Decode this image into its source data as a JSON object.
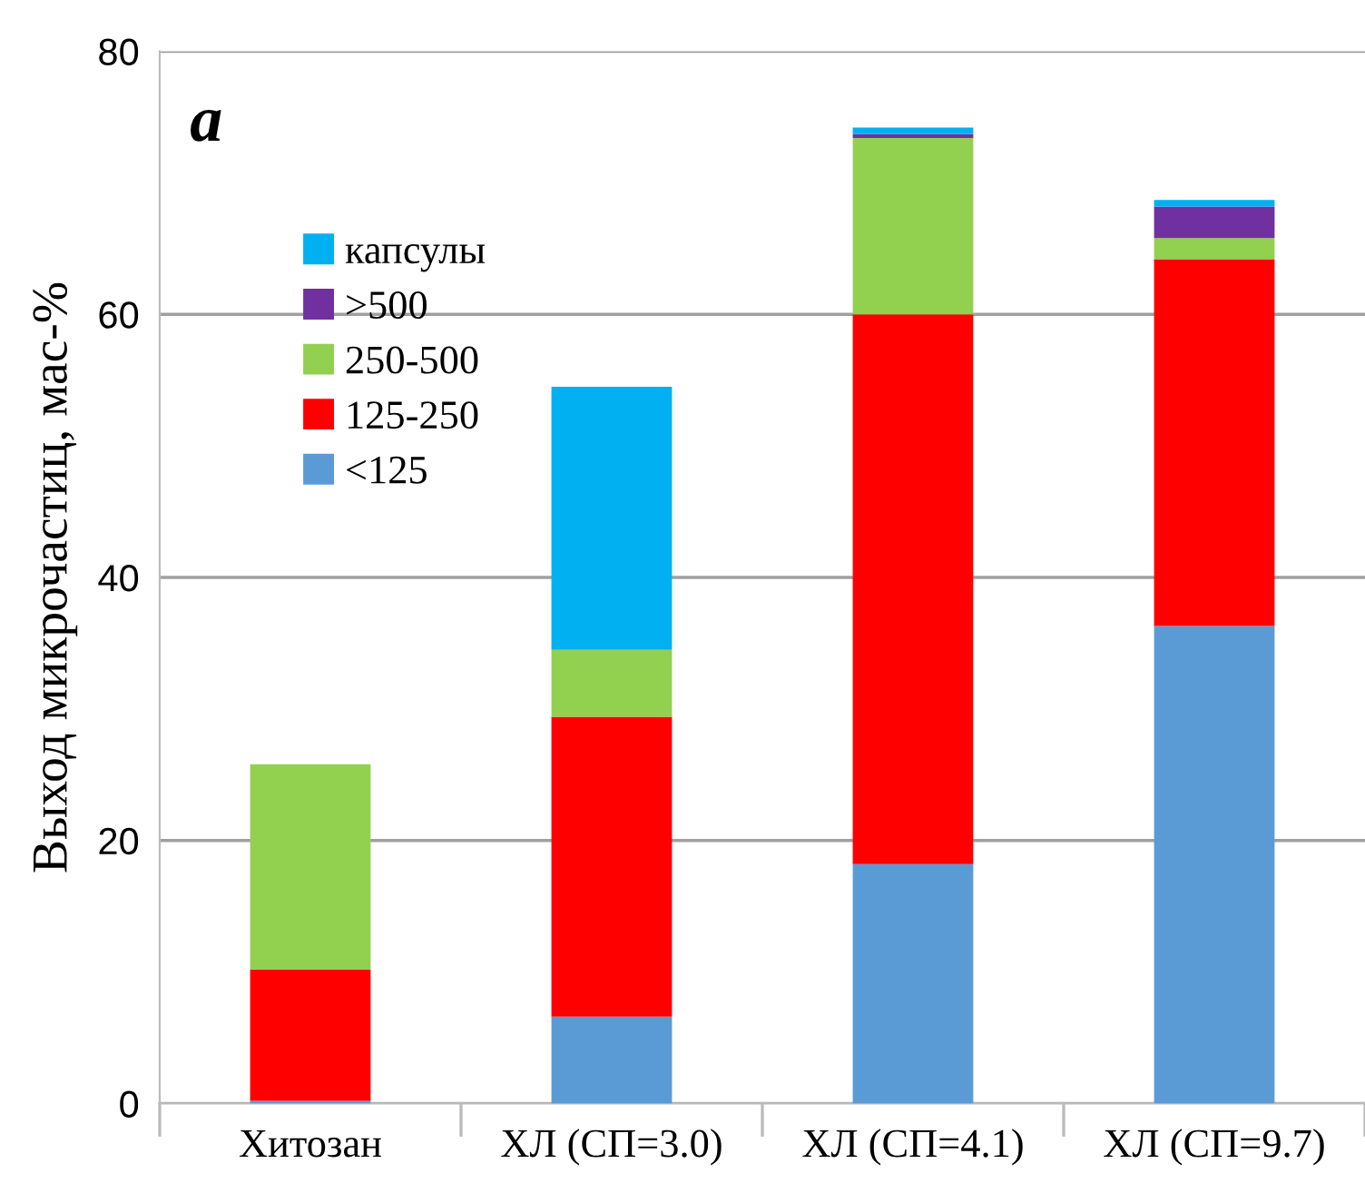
{
  "chart_data": {
    "type": "bar",
    "stacked": true,
    "ylabel": "Выход микрочастиц, мас-%",
    "categories": [
      "Хитозан",
      "ХЛ (СП=3.0)",
      "ХЛ (СП=4.1)",
      "ХЛ (СП=9.7)"
    ],
    "series": [
      {
        "name": "<125",
        "color": "#5b9bd5",
        "values": [
          0.2,
          6.6,
          18.2,
          36.3
        ]
      },
      {
        "name": "125-250",
        "color": "#ff0000",
        "values": [
          10.0,
          22.8,
          41.8,
          27.9
        ]
      },
      {
        "name": "250-500",
        "color": "#92d050",
        "values": [
          15.6,
          5.1,
          13.4,
          1.6
        ]
      },
      {
        "name": ">500",
        "color": "#7030a0",
        "values": [
          0,
          0,
          0.3,
          2.4
        ]
      },
      {
        "name": "капсулы",
        "color": "#00b0f0",
        "values": [
          0,
          20.0,
          0.5,
          0.5
        ]
      }
    ],
    "ylim": [
      0,
      80
    ],
    "yticks": [
      0,
      20,
      40,
      60,
      80
    ],
    "grid": "y",
    "legend": "top left",
    "annotations": [
      "a"
    ]
  }
}
